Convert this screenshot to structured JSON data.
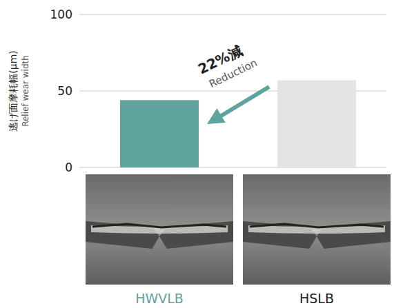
{
  "chart_data": {
    "type": "bar",
    "ylabel": "逃げ面摩耗幅(μm)",
    "ylabel_en": "Relief wear width",
    "categories": [
      "HWVLB",
      "HSLB"
    ],
    "values": [
      44,
      57
    ],
    "colors": [
      "#5fa39f",
      "#e4e4e6"
    ],
    "ylim": [
      0,
      100
    ],
    "yticks": [
      0,
      50,
      100
    ],
    "grid": true,
    "annotation": {
      "text": "22%減",
      "subtext": "Reduction"
    }
  }
}
